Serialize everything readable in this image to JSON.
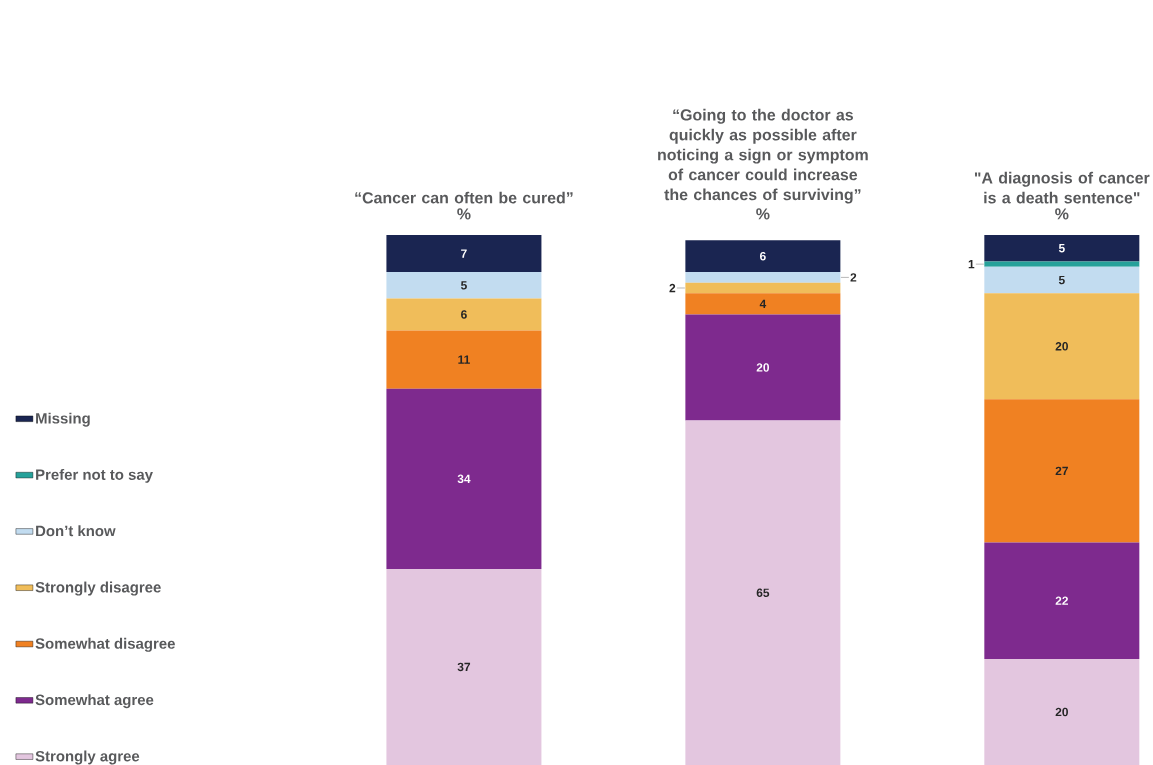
{
  "chart_data": {
    "type": "bar",
    "stacked": true,
    "ylabel": "%",
    "categories": [
      "“Cancer can often be cured”",
      "“Going to the doctor as quickly as possible after noticing a sign or symptom of cancer could increase the chances of surviving”",
      "\"A diagnosis of cancer is a death sentence\""
    ],
    "series": [
      {
        "name": "Strongly agree",
        "color": "#e3c6df",
        "values": [
          37,
          65,
          20
        ]
      },
      {
        "name": "Somewhat agree",
        "color": "#7e2a8e",
        "values": [
          34,
          20,
          22
        ]
      },
      {
        "name": "Somewhat disagree",
        "color": "#f08122",
        "values": [
          11,
          4,
          27
        ]
      },
      {
        "name": "Strongly disagree",
        "color": "#f0bd5a",
        "values": [
          6,
          2,
          20
        ]
      },
      {
        "name": "Don’t know",
        "color": "#c2dcf0",
        "values": [
          5,
          2,
          5
        ]
      },
      {
        "name": "Prefer not to say",
        "color": "#26a19a",
        "values": [
          null,
          null,
          1
        ]
      },
      {
        "name": "Missing",
        "color": "#1a2551",
        "values": [
          7,
          6,
          5
        ]
      }
    ],
    "data_labels": true,
    "legend": "left"
  }
}
